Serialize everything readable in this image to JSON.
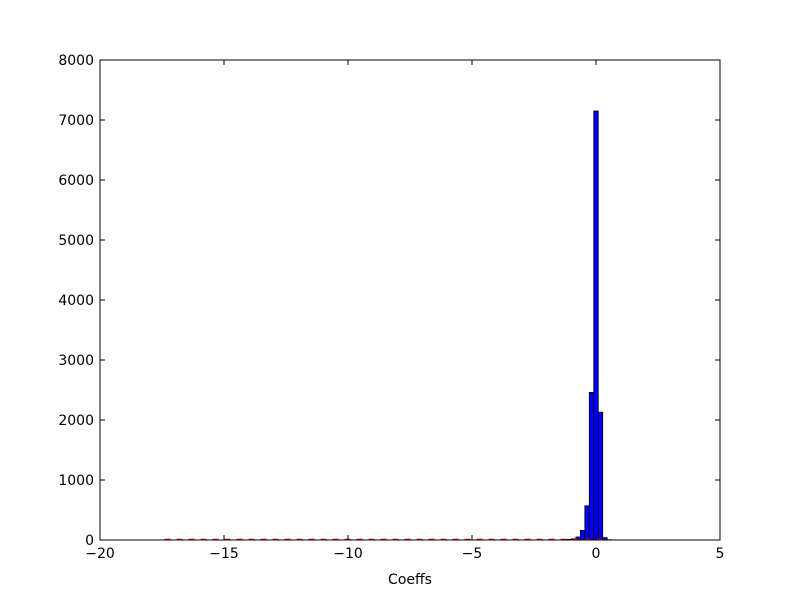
{
  "chart_data": {
    "type": "bar",
    "title": "",
    "xlabel": "Coeffs",
    "ylabel": "",
    "xlim": [
      -20,
      5
    ],
    "ylim": [
      0,
      8000
    ],
    "xticks": [
      -20,
      -15,
      -10,
      -5,
      0,
      5
    ],
    "xtick_labels": [
      "−20",
      "−15",
      "−10",
      "−5",
      "0",
      "5"
    ],
    "yticks": [
      0,
      1000,
      2000,
      3000,
      4000,
      5000,
      6000,
      7000,
      8000
    ],
    "ytick_labels": [
      "0",
      "1000",
      "2000",
      "3000",
      "4000",
      "5000",
      "6000",
      "7000",
      "8000"
    ],
    "grid": false,
    "series": [
      {
        "bar_color": "#0000ff",
        "edge_color": "#000000",
        "bin_width": 0.18,
        "bins": [
          {
            "x": -1.26,
            "value": 5
          },
          {
            "x": -1.08,
            "value": 10
          },
          {
            "x": -0.9,
            "value": 20
          },
          {
            "x": -0.72,
            "value": 50
          },
          {
            "x": -0.54,
            "value": 160
          },
          {
            "x": -0.36,
            "value": 570
          },
          {
            "x": -0.18,
            "value": 2460
          },
          {
            "x": 0.0,
            "value": 7150
          },
          {
            "x": 0.18,
            "value": 2130
          },
          {
            "x": 0.36,
            "value": 40
          },
          {
            "x": 0.54,
            "value": 5
          }
        ]
      },
      {
        "line_color": "#ff0000",
        "line_style": "dashed",
        "x_range": [
          -17.4,
          0.5
        ],
        "value": 0
      }
    ]
  }
}
